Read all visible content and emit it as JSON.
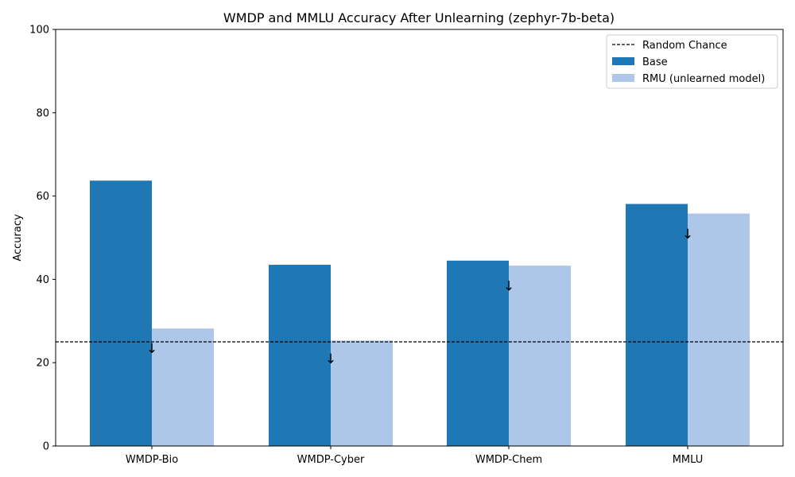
{
  "chart_data": {
    "type": "bar",
    "title": "WMDP and MMLU Accuracy After Unlearning (zephyr-7b-beta)",
    "xlabel": "",
    "ylabel": "Accuracy",
    "ylim": [
      0,
      100
    ],
    "yticks": [
      "0",
      "20",
      "40",
      "60",
      "80",
      "100"
    ],
    "categories": [
      "WMDP-Bio",
      "WMDP-Cyber",
      "WMDP-Chem",
      "MMLU"
    ],
    "series": [
      {
        "name": "Base",
        "color": "#1f77b4",
        "values": [
          63.7,
          43.5,
          44.5,
          58.1
        ]
      },
      {
        "name": "RMU (unlearned model)",
        "color": "#aec7e8",
        "values": [
          28.2,
          25.3,
          43.3,
          55.8
        ]
      }
    ],
    "reference_line": {
      "label": "Random Chance",
      "value": 25,
      "style": "dashed",
      "color": "#000000"
    },
    "annotations": {
      "glyph": "↓",
      "values": [
        23.5,
        21.0,
        38.5,
        51.0
      ]
    },
    "legend": {
      "placement": "top-right",
      "items": [
        "Random Chance",
        "Base",
        "RMU (unlearned model)"
      ]
    },
    "grid": false
  }
}
